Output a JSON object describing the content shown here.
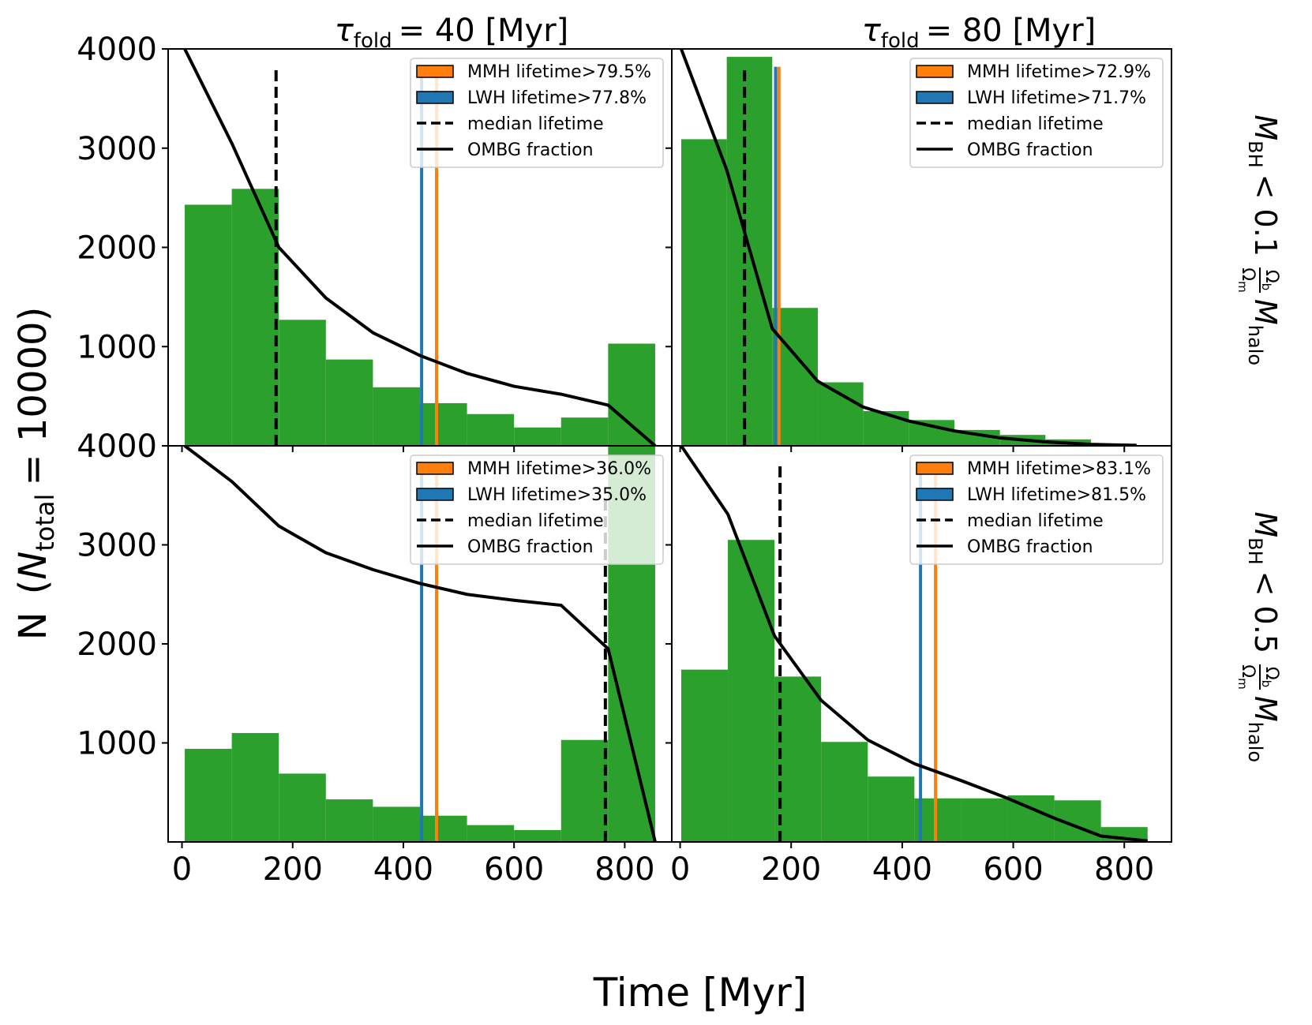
{
  "figure": {
    "xlabel": "Time [Myr]",
    "ylabel": "N  (N_total = 10000)",
    "ylabel_parts": {
      "n": "N",
      "open": "(",
      "nsym": "N",
      "sub": "total",
      "rest": "= 10000)"
    },
    "col_titles": [
      {
        "sym": "τ",
        "sub": "fold",
        "rest": "= 40 [Myr]"
      },
      {
        "sym": "τ",
        "sub": "fold",
        "rest": "= 80 [Myr]"
      }
    ],
    "row_labels": [
      {
        "m": "M",
        "sub": "BH",
        "rel": "< 0.1",
        "frac_num": "Ω_b",
        "frac_den": "Ω_m",
        "m2": "M",
        "sub2": "halo",
        "num_sub": "b",
        "den_sub": "m"
      },
      {
        "m": "M",
        "sub": "BH",
        "rel": "< 0.5",
        "frac_num": "Ω_b",
        "frac_den": "Ω_m",
        "m2": "M",
        "sub2": "halo",
        "num_sub": "b",
        "den_sub": "m"
      }
    ],
    "omega": "Ω",
    "x_ticks": [
      0,
      200,
      400,
      600,
      800
    ],
    "y_ticks": [
      1000,
      2000,
      3000,
      4000
    ],
    "ylim": [
      0,
      4000
    ],
    "colors": {
      "hist": "#2ca02c",
      "mmh": "#ff7f0e",
      "lwh": "#1f77b4",
      "line": "#000000"
    }
  },
  "chart_data": [
    {
      "type": "bar",
      "panel": "top-left",
      "title": "τ_fold = 40 [Myr]",
      "row": "M_BH < 0.1 Ω_b/Ω_m M_halo",
      "xlim": [
        -25,
        885
      ],
      "ylim": [
        0,
        4000
      ],
      "bin_edges": [
        5,
        90,
        175,
        260,
        345,
        430,
        515,
        600,
        685,
        770,
        855
      ],
      "values": [
        2430,
        2590,
        1270,
        870,
        590,
        430,
        320,
        185,
        285,
        1030
      ],
      "median_lifetime": 170,
      "median_top": 3800,
      "lwh_line": 433,
      "mmh_line": 460,
      "lifetime_line_top": 3800,
      "ombg_fraction": {
        "x": [
          5,
          90,
          175,
          260,
          345,
          430,
          515,
          600,
          685,
          770,
          855
        ],
        "y": [
          4000,
          3050,
          2000,
          1490,
          1140,
          910,
          730,
          600,
          520,
          410,
          0
        ]
      },
      "legend": [
        {
          "kind": "patch",
          "color": "#ff7f0e",
          "label": "MMH lifetime>79.5%"
        },
        {
          "kind": "patch",
          "color": "#1f77b4",
          "label": "LWH lifetime>77.8%"
        },
        {
          "kind": "dashed",
          "label": "median lifetime"
        },
        {
          "kind": "solid",
          "label": "OMBG fraction"
        }
      ]
    },
    {
      "type": "bar",
      "panel": "top-right",
      "title": "τ_fold = 80 [Myr]",
      "row": "M_BH < 0.1 Ω_b/Ω_m M_halo",
      "xlim": [
        -15,
        885
      ],
      "ylim": [
        0,
        4000
      ],
      "bin_edges": [
        2,
        84,
        166,
        248,
        330,
        412,
        494,
        576,
        658,
        740,
        822
      ],
      "values": [
        3090,
        3920,
        1390,
        640,
        350,
        260,
        160,
        110,
        65,
        20
      ],
      "median_lifetime": 116,
      "median_top": 3800,
      "lwh_line": 172,
      "mmh_line": 178,
      "lifetime_line_top": 3820,
      "ombg_fraction": {
        "x": [
          2,
          84,
          166,
          248,
          330,
          412,
          494,
          576,
          658,
          740,
          822
        ],
        "y": [
          4000,
          2780,
          1180,
          650,
          390,
          250,
          150,
          80,
          40,
          15,
          5
        ]
      },
      "legend": [
        {
          "kind": "patch",
          "color": "#ff7f0e",
          "label": "MMH lifetime>72.9%"
        },
        {
          "kind": "patch",
          "color": "#1f77b4",
          "label": "LWH lifetime>71.7%"
        },
        {
          "kind": "dashed",
          "label": "median lifetime"
        },
        {
          "kind": "solid",
          "label": "OMBG fraction"
        }
      ]
    },
    {
      "type": "bar",
      "panel": "bottom-left",
      "title": "τ_fold = 40 [Myr]",
      "row": "M_BH < 0.5 Ω_b/Ω_m M_halo",
      "xlim": [
        -25,
        885
      ],
      "ylim": [
        0,
        4000
      ],
      "bin_edges": [
        5,
        90,
        175,
        260,
        345,
        430,
        515,
        600,
        685,
        770,
        855
      ],
      "values": [
        940,
        1100,
        690,
        430,
        355,
        265,
        170,
        120,
        1030,
        4000
      ],
      "median_lifetime": 765,
      "median_top": 3500,
      "lwh_line": 433,
      "mmh_line": 460,
      "lifetime_line_top": 3800,
      "ombg_fraction": {
        "x": [
          5,
          90,
          175,
          260,
          345,
          430,
          515,
          600,
          685,
          770,
          855
        ],
        "y": [
          4000,
          3640,
          3190,
          2920,
          2750,
          2610,
          2500,
          2440,
          2390,
          1950,
          0
        ]
      },
      "legend": [
        {
          "kind": "patch",
          "color": "#ff7f0e",
          "label": "MMH lifetime>36.0%"
        },
        {
          "kind": "patch",
          "color": "#1f77b4",
          "label": "LWH lifetime>35.0%"
        },
        {
          "kind": "dashed",
          "label": "median lifetime"
        },
        {
          "kind": "solid",
          "label": "OMBG fraction"
        }
      ]
    },
    {
      "type": "bar",
      "panel": "bottom-right",
      "title": "τ_fold = 80 [Myr]",
      "row": "M_BH < 0.5 Ω_b/Ω_m M_halo",
      "xlim": [
        -15,
        885
      ],
      "ylim": [
        0,
        4000
      ],
      "bin_edges": [
        2,
        86,
        170,
        254,
        338,
        422,
        506,
        590,
        674,
        758,
        842
      ],
      "values": [
        1740,
        3050,
        1670,
        1010,
        660,
        440,
        440,
        470,
        420,
        150
      ],
      "median_lifetime": 180,
      "median_top": 3800,
      "lwh_line": 433,
      "mmh_line": 460,
      "lifetime_line_top": 3800,
      "ombg_fraction": {
        "x": [
          2,
          86,
          170,
          254,
          338,
          422,
          506,
          590,
          674,
          758,
          842
        ],
        "y": [
          4000,
          3310,
          2080,
          1430,
          1030,
          790,
          620,
          440,
          240,
          60,
          10
        ]
      },
      "legend": [
        {
          "kind": "patch",
          "color": "#ff7f0e",
          "label": "MMH lifetime>83.1%"
        },
        {
          "kind": "patch",
          "color": "#1f77b4",
          "label": "LWH lifetime>81.5%"
        },
        {
          "kind": "dashed",
          "label": "median lifetime"
        },
        {
          "kind": "solid",
          "label": "OMBG fraction"
        }
      ]
    }
  ]
}
